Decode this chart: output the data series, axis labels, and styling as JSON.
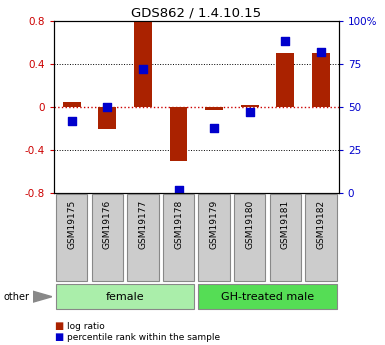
{
  "title": "GDS862 / 1.4.10.15",
  "samples": [
    "GSM19175",
    "GSM19176",
    "GSM19177",
    "GSM19178",
    "GSM19179",
    "GSM19180",
    "GSM19181",
    "GSM19182"
  ],
  "log_ratio": [
    0.05,
    -0.2,
    0.79,
    -0.5,
    -0.03,
    0.02,
    0.5,
    0.5
  ],
  "percentile": [
    42,
    50,
    72,
    2,
    38,
    47,
    88,
    82
  ],
  "groups": [
    {
      "label": "female",
      "start": 0,
      "end": 4,
      "color": "#aaeeaa"
    },
    {
      "label": "GH-treated male",
      "start": 4,
      "end": 8,
      "color": "#55dd55"
    }
  ],
  "bar_color": "#aa2200",
  "dot_color": "#0000cc",
  "ylim_left": [
    -0.8,
    0.8
  ],
  "ylim_right": [
    0,
    100
  ],
  "yticks_left": [
    -0.8,
    -0.4,
    0.0,
    0.4,
    0.8
  ],
  "yticks_right": [
    0,
    25,
    50,
    75,
    100
  ],
  "hline_color": "#cc0000",
  "grid_color": "black",
  "bar_width": 0.5,
  "dot_size": 28,
  "sample_box_color": "#cccccc",
  "sample_box_edge": "#888888",
  "legend_bar_label": "log ratio",
  "legend_dot_label": "percentile rank within the sample",
  "other_label": "other"
}
